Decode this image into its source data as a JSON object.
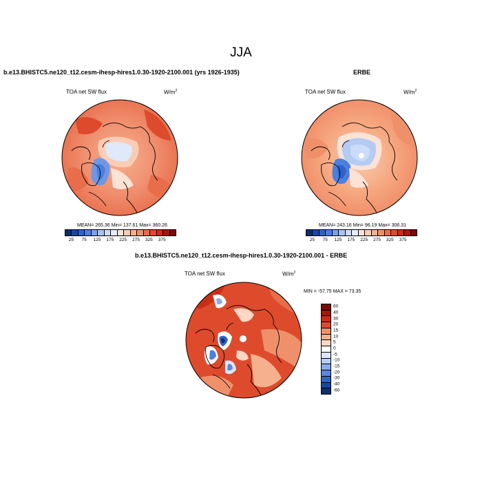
{
  "figure": {
    "title": "JJA"
  },
  "panels": [
    {
      "title": "b.e13.BHISTC5.ne120_t12.cesm-ihesp-hires1.0.30-1920-2100.001 (yrs 1926-1935)",
      "variable": "TOA net SW flux",
      "units": "W/m",
      "units_exp": "2",
      "stats_text": "MEAN= 265.36  Min= 137.61  Max= 360.26",
      "stats": {
        "mean": 265.36,
        "min": 137.61,
        "max": 360.26
      },
      "colorbar_labels": [
        "25",
        "75",
        "125",
        "175",
        "225",
        "275",
        "325",
        "375"
      ]
    },
    {
      "title": "ERBE",
      "variable": "TOA net SW flux",
      "units": "W/m",
      "units_exp": "2",
      "stats_text": "MEAN= 243.16  Min= 96.19  Max= 306.31",
      "stats": {
        "mean": 243.16,
        "min": 96.19,
        "max": 306.31
      },
      "colorbar_labels": [
        "25",
        "75",
        "125",
        "175",
        "225",
        "275",
        "325",
        "375"
      ]
    },
    {
      "title": "b.e13.BHISTC5.ne120_t12.cesm-ihesp-hires1.0.30-1920-2100.001 - ERBE",
      "variable": "TOA net SW flux",
      "units": "W/m",
      "units_exp": "2",
      "stats_text": "MIN = -57.75 MAX =  73.35",
      "stats": {
        "min": -57.75,
        "max": 73.35
      },
      "colorbar_labels": [
        "60",
        "40",
        "30",
        "20",
        "15",
        "10",
        "5",
        "0",
        "-5",
        "-10",
        "-15",
        "-20",
        "-30",
        "-40",
        "-60"
      ]
    }
  ],
  "colors": {
    "abs_scale": [
      "#08306b",
      "#1646a8",
      "#2f62cc",
      "#4a7fe0",
      "#7aa2ea",
      "#a6c3f2",
      "#cadcf8",
      "#e4edfa",
      "#fbe3d6",
      "#f9cdb4",
      "#f6b08e",
      "#f0906a",
      "#e86d4a",
      "#dd4b2c",
      "#c92e14",
      "#a8160a",
      "#7a0a04"
    ],
    "diff_scale": [
      "#7a0a04",
      "#a8160a",
      "#c92e14",
      "#dd4b2c",
      "#f0906a",
      "#f6b08e",
      "#fbd7c4",
      "#ffffff",
      "#dce7fa",
      "#b6cdf4",
      "#88abec",
      "#5a86e0",
      "#2f62cc",
      "#1646a8",
      "#08306b"
    ]
  }
}
